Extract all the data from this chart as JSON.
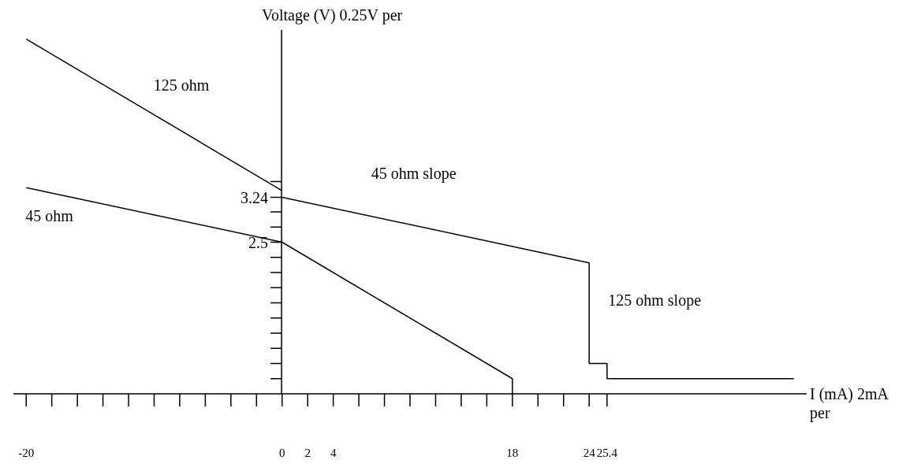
{
  "chart_data": {
    "type": "line",
    "xlabel": "I (mA) 2mA per",
    "ylabel": "Voltage (V) 0.25V per",
    "xlim": [
      -21,
      41
    ],
    "ylim": [
      0,
      6
    ],
    "xticks": [
      -20,
      {
        "value": -18,
        "label": null
      },
      {
        "value": -16,
        "label": null
      },
      {
        "value": -14,
        "label": null
      },
      {
        "value": -12,
        "label": null
      },
      {
        "value": -10,
        "label": null
      },
      {
        "value": -8,
        "label": null
      },
      {
        "value": -6,
        "label": null
      },
      {
        "value": -4,
        "label": null
      },
      {
        "value": -2,
        "label": null
      },
      0,
      2,
      4,
      {
        "value": 6,
        "label": null
      },
      {
        "value": 8,
        "label": null
      },
      {
        "value": 10,
        "label": null
      },
      {
        "value": 12,
        "label": null
      },
      {
        "value": 14,
        "label": null
      },
      {
        "value": 16,
        "label": null
      },
      18,
      {
        "value": 20,
        "label": null
      },
      {
        "value": 22,
        "label": null
      },
      24,
      25.4
    ],
    "yticks": [
      {
        "value": 0.25,
        "label": null
      },
      {
        "value": 0.5,
        "label": null
      },
      {
        "value": 0.75,
        "label": null
      },
      {
        "value": 1,
        "label": null
      },
      {
        "value": 1.25,
        "label": null
      },
      {
        "value": 1.5,
        "label": null
      },
      {
        "value": 1.75,
        "label": null
      },
      {
        "value": 2,
        "label": null
      },
      {
        "value": 2.25,
        "label": null
      },
      2.5,
      {
        "value": 2.75,
        "label": null
      },
      {
        "value": 3,
        "label": null
      },
      3.24,
      {
        "value": 3.5,
        "label": null
      }
    ],
    "marker": "none",
    "line_style": "solid",
    "series": [
      {
        "color": "#000000",
        "x": [
          -20,
          0
        ],
        "values": [
          5.85,
          3.35
        ]
      },
      {
        "color": "#000000",
        "x": [
          -20,
          0,
          18,
          18
        ],
        "values": [
          3.4,
          2.5,
          0.25,
          0
        ]
      },
      {
        "color": "#000000",
        "x": [
          0,
          24,
          24,
          25.4,
          25.4,
          40
        ],
        "values": [
          3.24,
          2.16,
          0.5,
          0.5,
          0.25,
          0.25
        ]
      }
    ],
    "annotations": [
      "125 ohm",
      "45 ohm",
      "45 ohm slope",
      "125 ohm slope"
    ]
  }
}
